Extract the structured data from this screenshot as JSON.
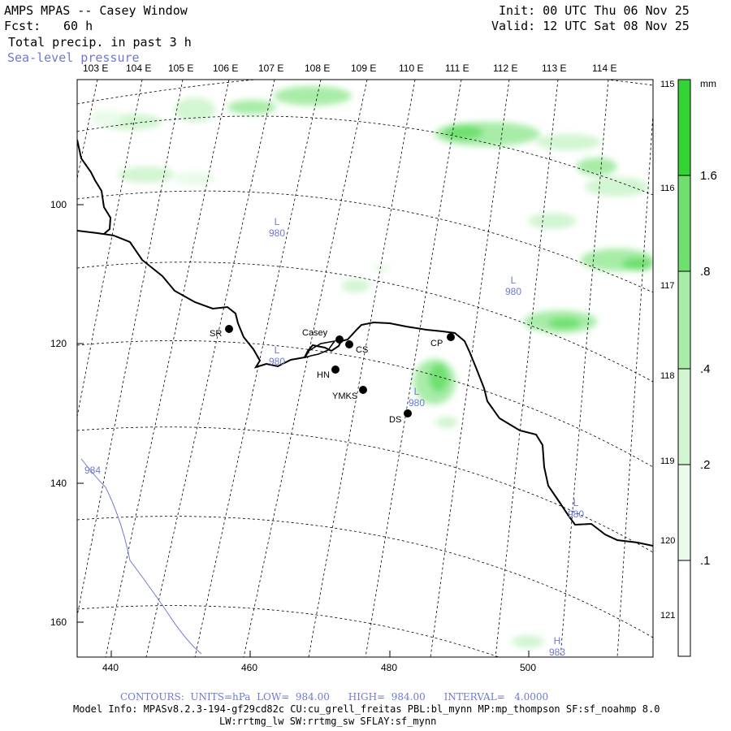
{
  "header": {
    "title": "AMPS MPAS -- Casey Window",
    "fcst_label": "Fcst:",
    "fcst_value": "60 h",
    "field": "Total precip. in past 3 h",
    "overlay": "Sea-level pressure",
    "init": "Init: 00 UTC Thu 06 Nov 25",
    "valid": "Valid: 12 UTC Sat 08 Nov 25"
  },
  "axes": {
    "top_longitudes": [
      "103 E",
      "104 E",
      "105 E",
      "106 E",
      "107 E",
      "108 E",
      "109 E",
      "110 E",
      "111 E",
      "112 E",
      "113 E",
      "114 E"
    ],
    "right_latitudes": [
      "115 E",
      "116 E",
      "117 E",
      "118 E",
      "119 E",
      "120 E",
      "121 E"
    ],
    "left_ticks": [
      "100",
      "120",
      "140",
      "160"
    ],
    "bottom_ticks": [
      "440",
      "460",
      "480",
      "500"
    ]
  },
  "colorbar": {
    "unit": "mm",
    "labels": [
      "1.6",
      ".8",
      ".4",
      ".2",
      ".1"
    ],
    "colors": [
      "#ffffff",
      "#eafbea",
      "#d2f5d2",
      "#a8eca8",
      "#6fe06f",
      "#34d434"
    ]
  },
  "stations": [
    {
      "id": "SR",
      "name": "SR"
    },
    {
      "id": "Casey",
      "name": "Casey"
    },
    {
      "id": "CS",
      "name": "CS"
    },
    {
      "id": "HN",
      "name": "HN"
    },
    {
      "id": "YMKS",
      "name": "YMKS"
    },
    {
      "id": "DS",
      "name": "DS"
    },
    {
      "id": "CP",
      "name": "CP"
    }
  ],
  "pressure_labels": [
    {
      "letter": "L",
      "value": "980"
    },
    {
      "letter": "L",
      "value": "980"
    },
    {
      "letter": "L",
      "value": "980"
    },
    {
      "letter": "L",
      "value": "980"
    },
    {
      "letter": "L",
      "value": "980"
    },
    {
      "letter": "H",
      "value": "983"
    },
    {
      "letter": "",
      "value": "984"
    }
  ],
  "footer": {
    "contours": "CONTOURS:  UNITS=hPa  LOW=  984.00      HIGH=  984.00      INTERVAL=   4.0000",
    "model_info": "Model Info: MPASv8.2.3-194-gf29cd82c CU:cu_grell_freitas PBL:bl_mynn MP:mp_thompson SF:sf_noahmp 8.0",
    "model_info2": "LW:rrtmg_lw SW:rrtmg_sw SFLAY:sf_mynn"
  }
}
